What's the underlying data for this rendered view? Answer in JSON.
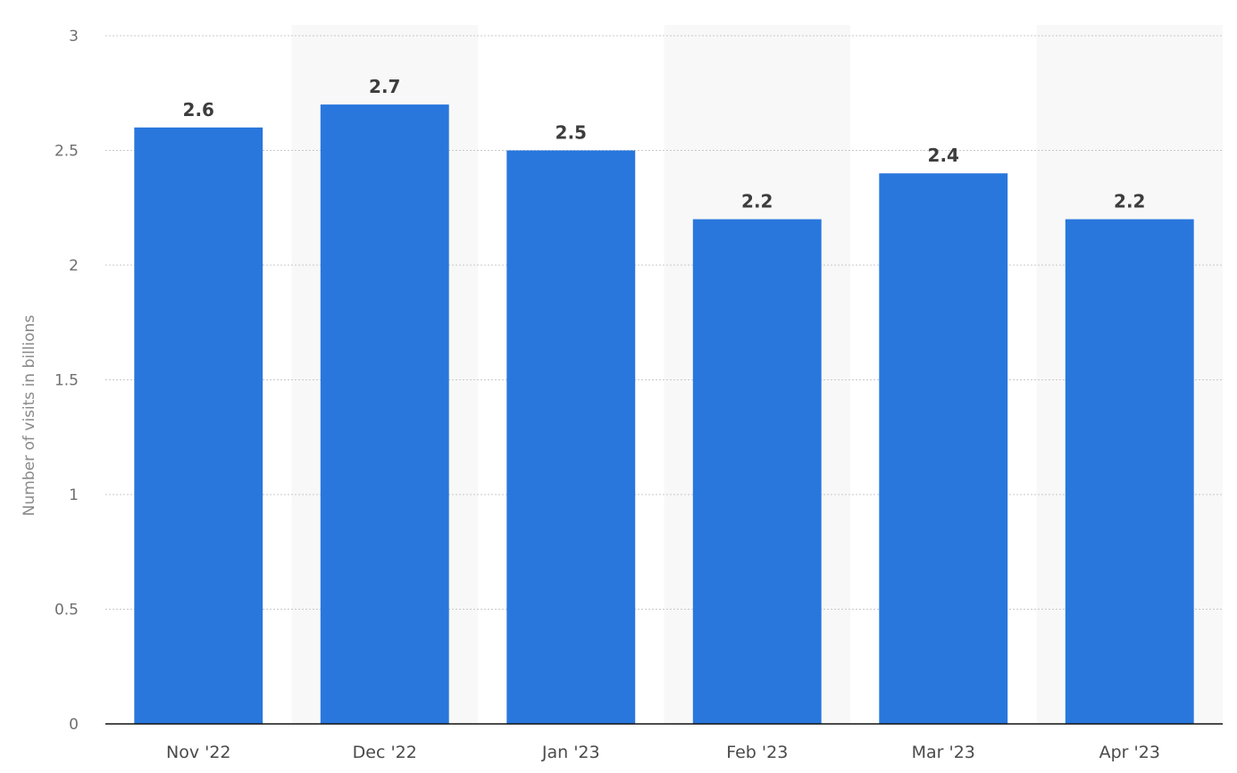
{
  "chart_data": {
    "type": "bar",
    "categories": [
      "Nov '22",
      "Dec '22",
      "Jan '23",
      "Feb '23",
      "Mar '23",
      "Apr '23"
    ],
    "values": [
      2.6,
      2.7,
      2.5,
      2.2,
      2.4,
      2.2
    ],
    "value_labels": [
      "2.6",
      "2.7",
      "2.5",
      "2.2",
      "2.4",
      "2.2"
    ],
    "title": "",
    "xlabel": "",
    "ylabel": "Number of visits in billions",
    "ylim": [
      0,
      3
    ],
    "yticks": [
      0,
      0.5,
      1,
      1.5,
      2,
      2.5,
      3
    ],
    "ytick_labels": [
      "0",
      "0.5",
      "1",
      "1.5",
      "2",
      "2.5",
      "3"
    ],
    "grid": true,
    "grid_style": "dotted",
    "alternating_band_shading": true,
    "colors": {
      "bar": "#2977dd",
      "band": "#f8f8f8",
      "grid": "#c9c9c9",
      "axis": "#111111"
    }
  }
}
